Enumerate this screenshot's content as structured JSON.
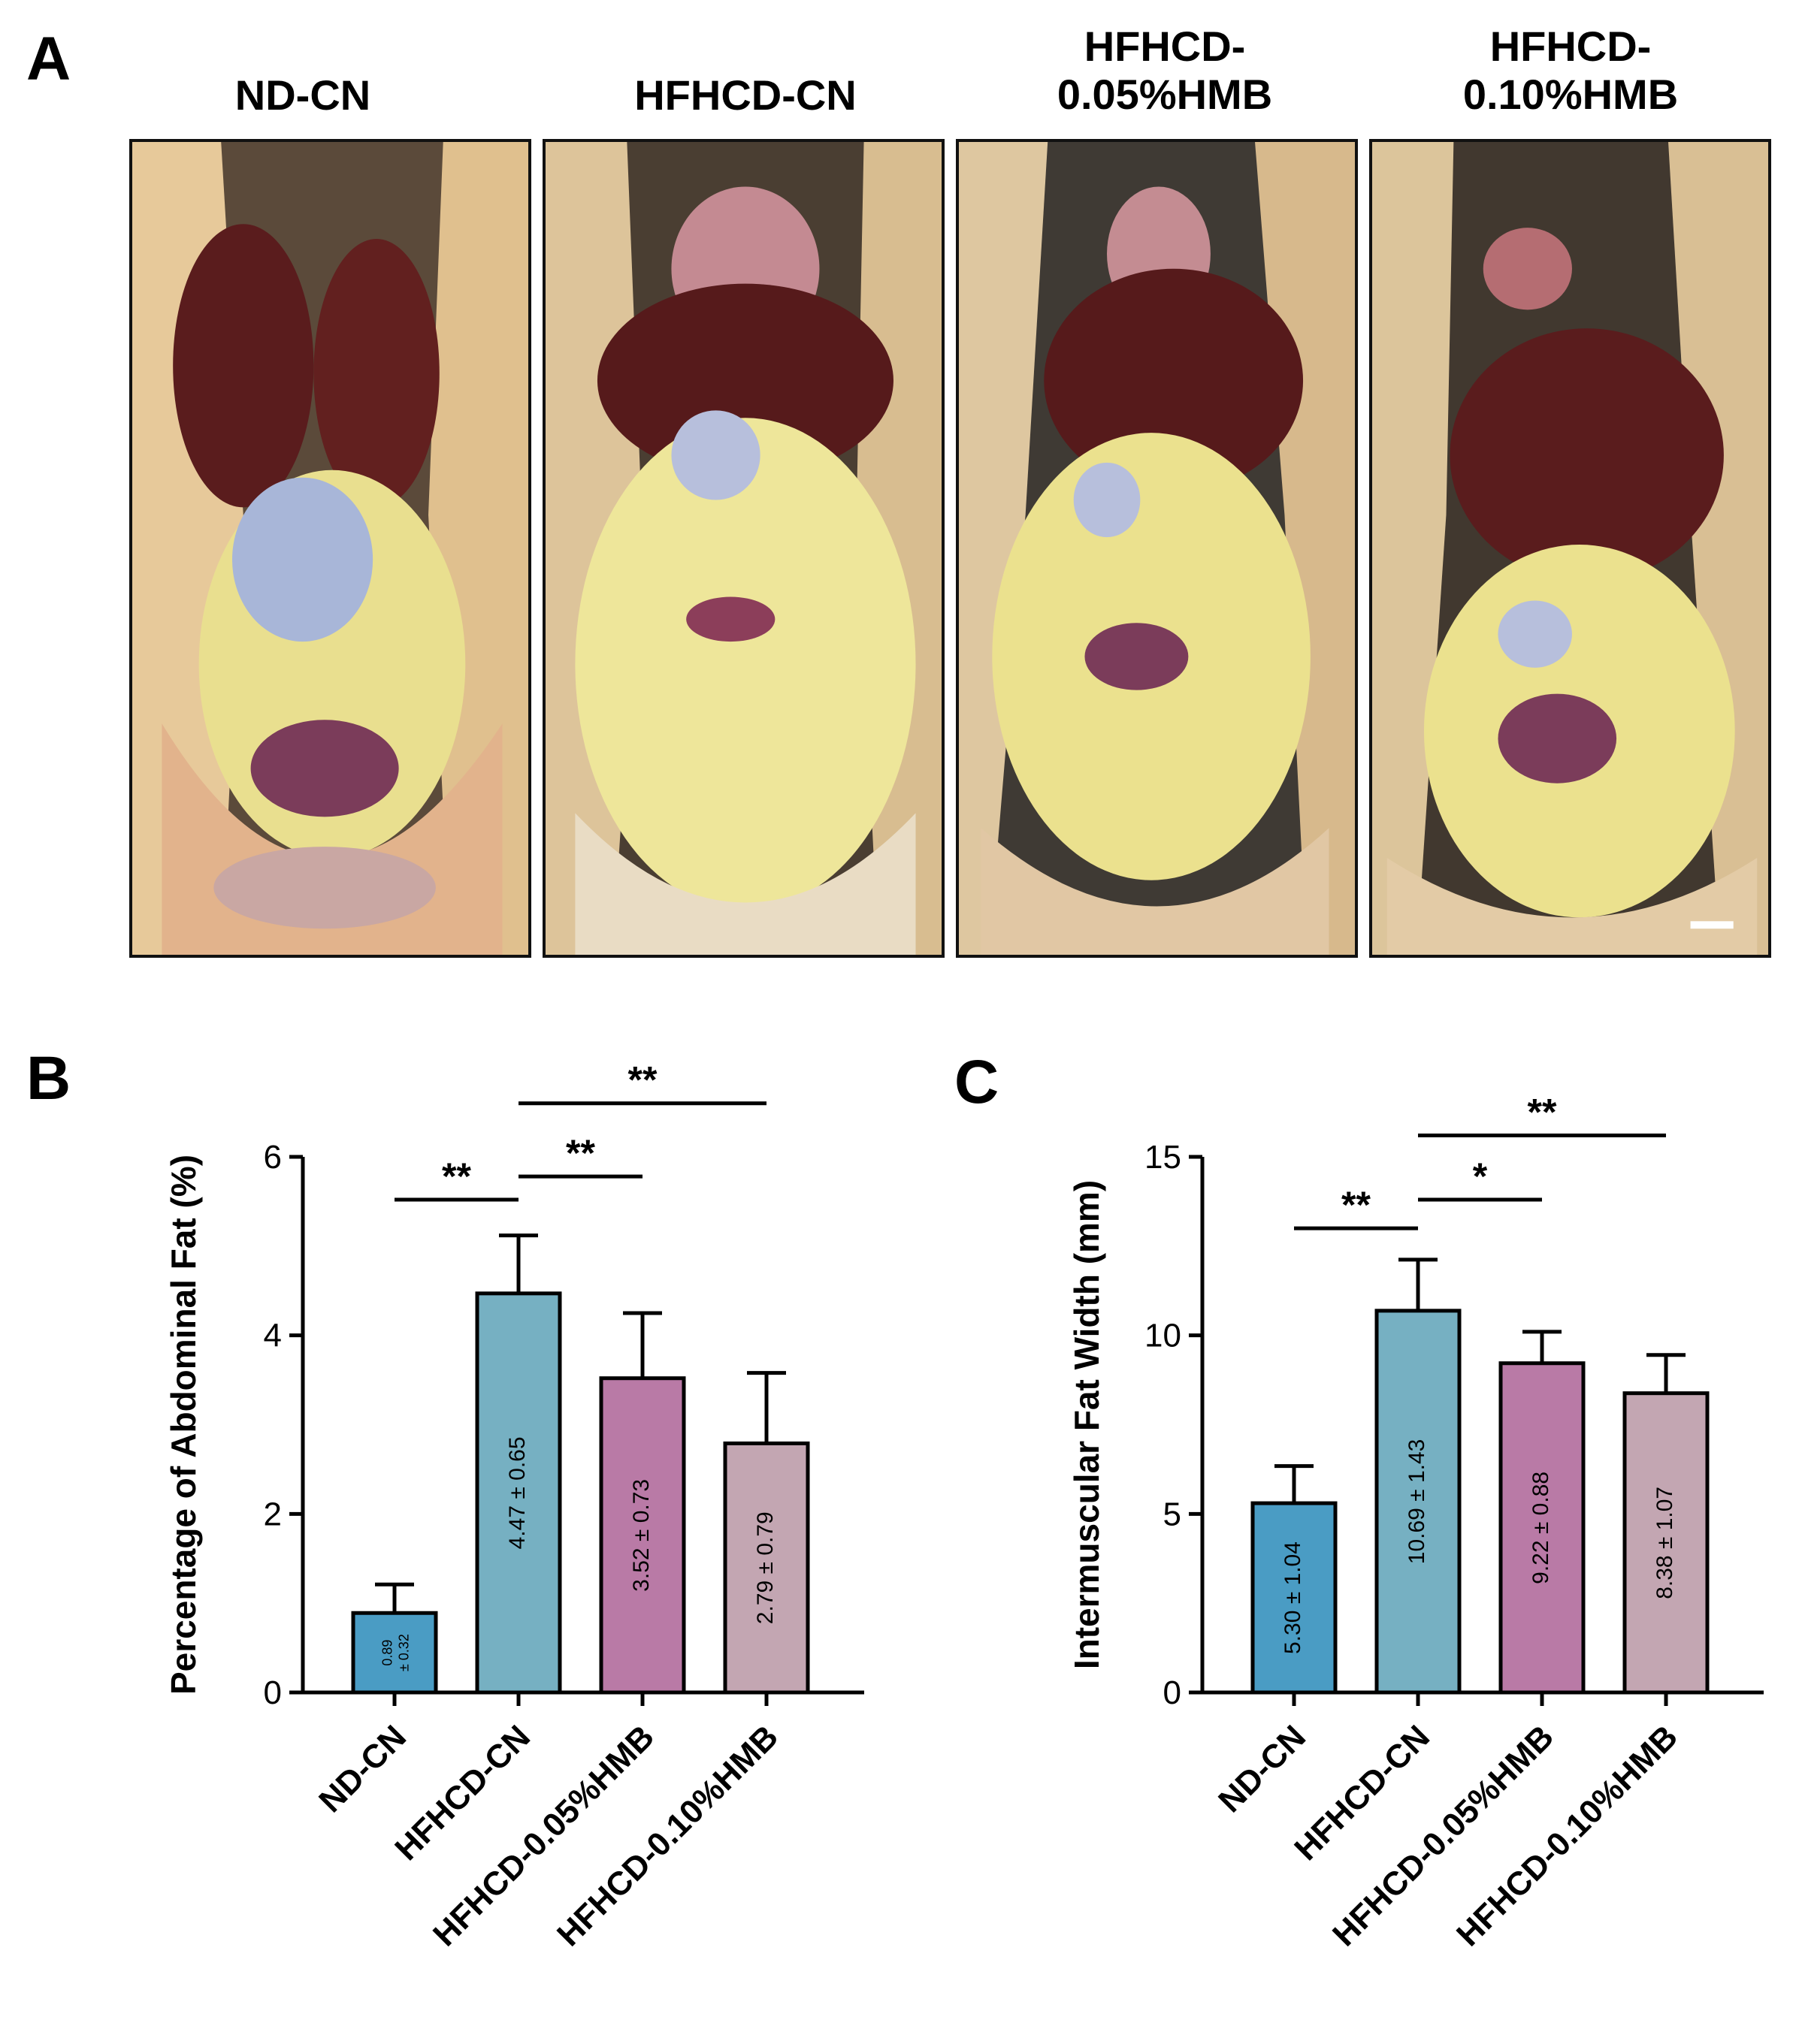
{
  "panels": {
    "a": {
      "letter": "A",
      "titles": [
        {
          "line1": "ND-CN",
          "line2": ""
        },
        {
          "line1": "HFHCD-CN",
          "line2": ""
        },
        {
          "line1": "HFHCD-",
          "line2": "0.05%HMB"
        },
        {
          "line1": "HFHCD-",
          "line2": "0.10%HMB"
        }
      ]
    },
    "b": {
      "letter": "B"
    },
    "c": {
      "letter": "C"
    }
  },
  "colors": {
    "nd_cn": "#4a9cc4",
    "hfhcd_cn": "#76b0c2",
    "hmb_005": "#b97aa6",
    "hmb_010": "#c3a6b2"
  },
  "chart_data": [
    {
      "type": "bar",
      "panel": "B",
      "title": "",
      "xlabel": "",
      "ylabel": "Percentage of Abdominal Fat (%)",
      "ylim": [
        0,
        6
      ],
      "yticks": [
        0,
        2,
        4,
        6
      ],
      "categories": [
        "ND-CN",
        "HFHCD-CN",
        "HFHCD-0.05%HMB",
        "HFHCD-0.10%HMB"
      ],
      "values": [
        0.89,
        4.47,
        3.52,
        2.79
      ],
      "errors": [
        0.32,
        0.65,
        0.73,
        0.79
      ],
      "bar_labels": [
        [
          "0.89",
          "± 0.32"
        ],
        [
          "4.47 ± 0.65"
        ],
        [
          "3.52 ± 0.73"
        ],
        [
          "2.79 ± 0.79"
        ]
      ],
      "significance": [
        {
          "from": 0,
          "to": 1,
          "level": 5.52,
          "label": "**"
        },
        {
          "from": 1,
          "to": 2,
          "level": 5.78,
          "label": "**"
        },
        {
          "from": 1,
          "to": 3,
          "level": 6.6,
          "label": "**"
        }
      ]
    },
    {
      "type": "bar",
      "panel": "C",
      "title": "",
      "xlabel": "",
      "ylabel": "Intermuscular Fat Width (mm)",
      "ylim": [
        0,
        15
      ],
      "yticks": [
        0,
        5,
        10,
        15
      ],
      "categories": [
        "ND-CN",
        "HFHCD-CN",
        "HFHCD-0.05%HMB",
        "HFHCD-0.10%HMB"
      ],
      "values": [
        5.3,
        10.69,
        9.22,
        8.38
      ],
      "errors": [
        1.04,
        1.43,
        0.88,
        1.07
      ],
      "bar_labels": [
        [
          "5.30 ± 1.04"
        ],
        [
          "10.69 ± 1.43"
        ],
        [
          "9.22 ± 0.88"
        ],
        [
          "8.38 ± 1.07"
        ]
      ],
      "significance": [
        {
          "from": 0,
          "to": 1,
          "level": 13.0,
          "label": "**"
        },
        {
          "from": 1,
          "to": 2,
          "level": 13.8,
          "label": "*"
        },
        {
          "from": 1,
          "to": 3,
          "level": 15.6,
          "label": "**"
        }
      ]
    }
  ]
}
